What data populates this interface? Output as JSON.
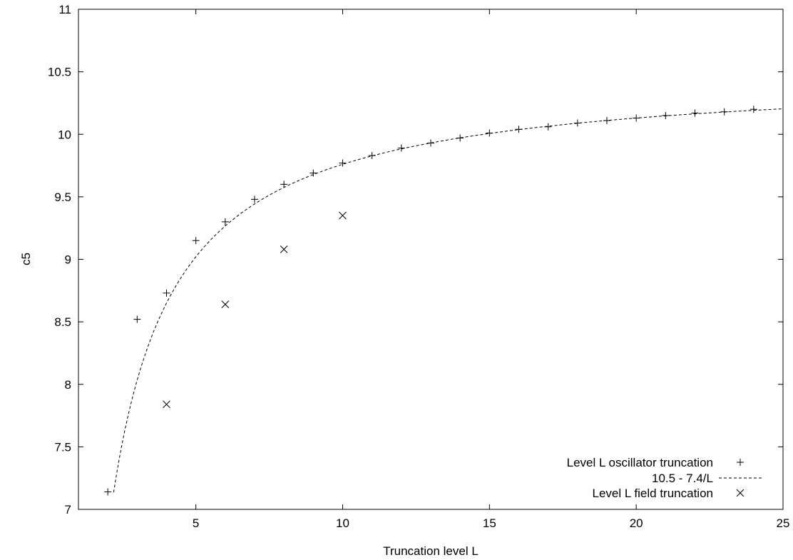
{
  "chart_data": {
    "type": "scatter",
    "xlabel": "Truncation level L",
    "ylabel": "c5",
    "xlim": [
      1,
      25
    ],
    "ylim": [
      7,
      11
    ],
    "xticks": [
      5,
      10,
      15,
      20,
      25
    ],
    "xtick_labels": [
      "5",
      "10",
      "15",
      "20",
      "25"
    ],
    "yticks": [
      7,
      7.5,
      8,
      8.5,
      9,
      9.5,
      10,
      10.5,
      11
    ],
    "ytick_labels": [
      "7",
      "7.5",
      "8",
      "8.5",
      "9",
      "9.5",
      "10",
      "10.5",
      "11"
    ],
    "grid": false,
    "legend_position": "bottom-right",
    "series": [
      {
        "name": "Level L oscillator truncation",
        "type": "scatter",
        "marker": "plus",
        "x": [
          2,
          3,
          4,
          5,
          6,
          7,
          8,
          9,
          10,
          11,
          12,
          13,
          14,
          15,
          16,
          17,
          18,
          19,
          20,
          21,
          22,
          23,
          24
        ],
        "y": [
          7.14,
          8.52,
          8.73,
          9.15,
          9.3,
          9.48,
          9.6,
          9.69,
          9.77,
          9.83,
          9.89,
          9.93,
          9.97,
          10.01,
          10.04,
          10.06,
          10.09,
          10.11,
          10.13,
          10.15,
          10.17,
          10.18,
          10.2
        ]
      },
      {
        "name": "10.5 - 7.4/L",
        "type": "line",
        "style": "dashed",
        "function": {
          "a": 10.5,
          "b": 7.4,
          "x_start": 2.2,
          "x_end": 25
        }
      },
      {
        "name": "Level L field truncation",
        "type": "scatter",
        "marker": "cross",
        "x": [
          4,
          6,
          8,
          10
        ],
        "y": [
          7.84,
          8.64,
          9.08,
          9.35
        ]
      }
    ]
  }
}
